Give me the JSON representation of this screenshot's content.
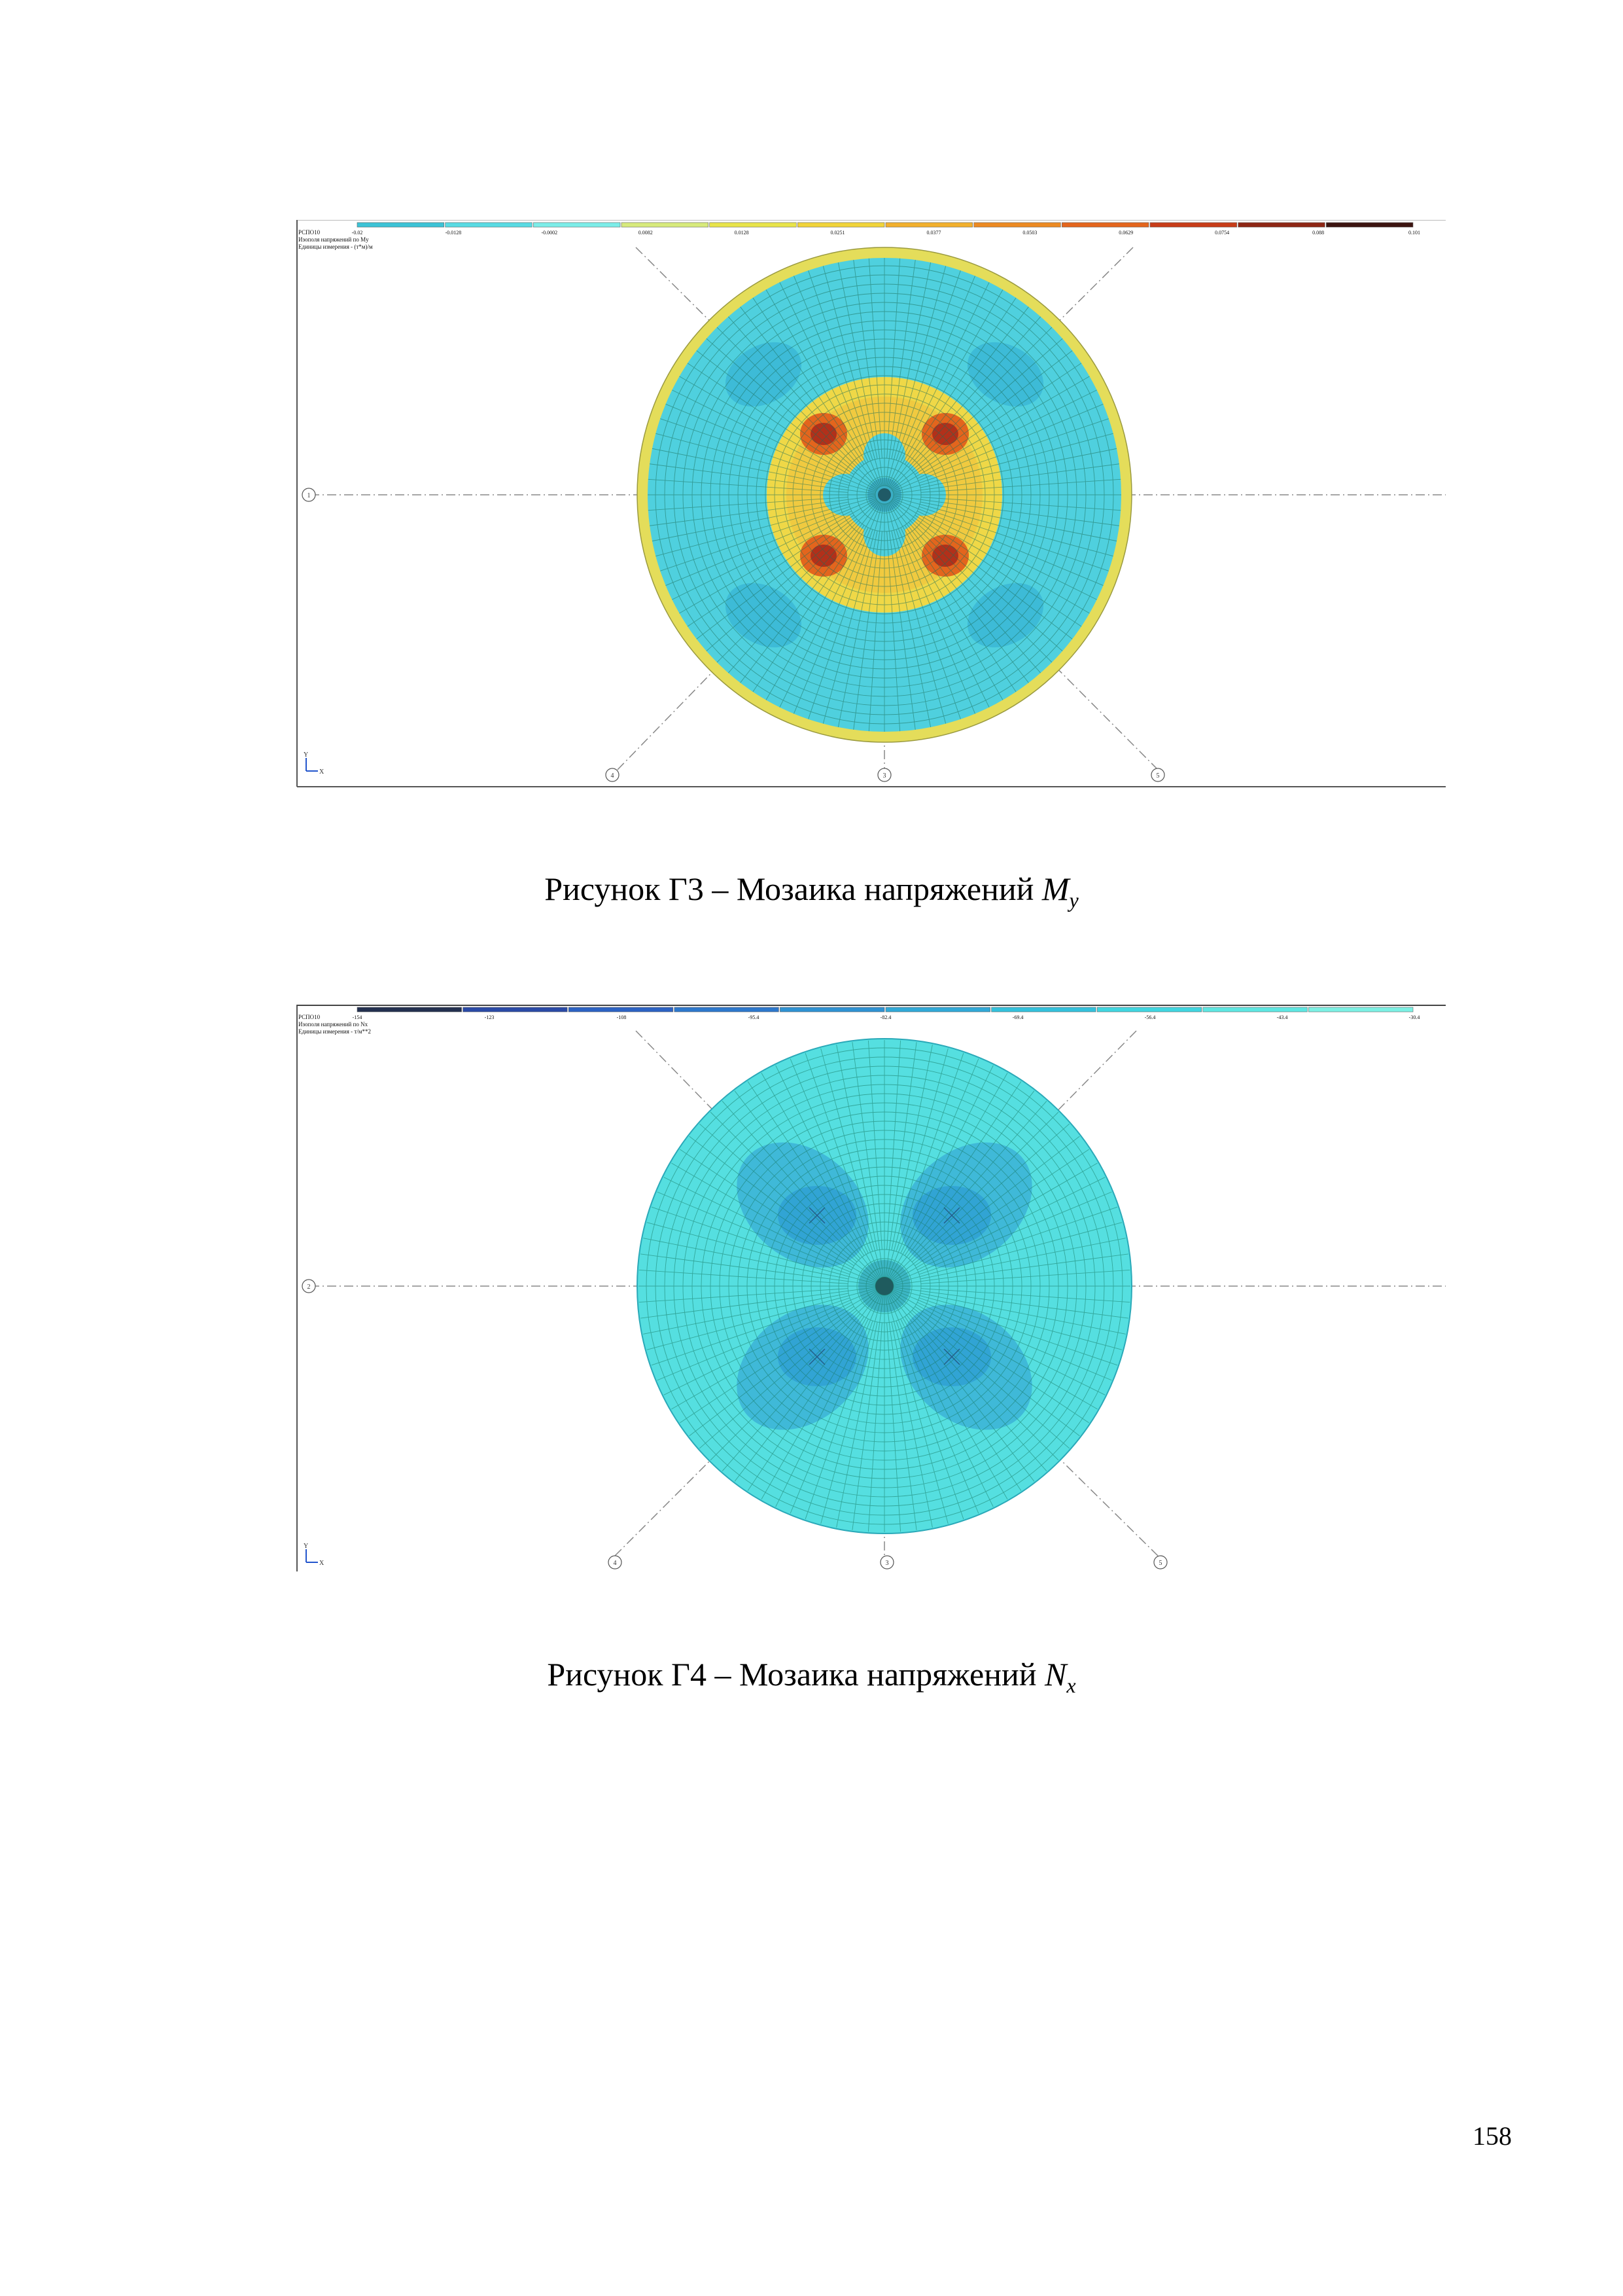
{
  "figures": [
    {
      "id": "fig1",
      "caption_prefix": "Рисунок Г3 – Мозаика напряжений ",
      "caption_var": "M",
      "caption_sub": "y",
      "header_lines": [
        "РСПО10",
        "Изополя напряжений по My",
        "Единицы измерения - (т*м)/м"
      ],
      "legend": {
        "colors": [
          "#3cc3d6",
          "#59dbe3",
          "#7cede8",
          "#d7ea7c",
          "#e8e44a",
          "#f1d43a",
          "#f2b02d",
          "#ec8a22",
          "#e4651d",
          "#c83c18",
          "#8e2614",
          "#3c1410"
        ],
        "values": [
          "-0.02",
          "-0.0128",
          "-0.0002",
          "0.0082",
          "0.0128",
          "0.0251",
          "0.0377",
          "0.0503",
          "0.0629",
          "0.0754",
          "0.088",
          "0.101"
        ]
      },
      "axis_markers": [
        "1",
        "4",
        "3",
        "5"
      ],
      "coord_axes": {
        "y": "Y",
        "x": "X"
      }
    },
    {
      "id": "fig2",
      "caption_prefix": "Рисунок Г4 – Мозаика напряжений ",
      "caption_var": "N",
      "caption_sub": "x",
      "header_lines": [
        "РСПО10",
        "Изополя напряжений по Nx",
        "Единицы измерения - т/м**2"
      ],
      "legend": {
        "colors": [
          "#23304f",
          "#2a4aa6",
          "#2c62c3",
          "#2d78cc",
          "#2f92d3",
          "#31a9d7",
          "#34c1dc",
          "#40d6e0",
          "#5ee7e2",
          "#7cf1e4"
        ],
        "values": [
          "-154",
          "-123",
          "-108",
          "-95.4",
          "-82.4",
          "-69.4",
          "-56.4",
          "-43.4",
          "-30.4"
        ]
      },
      "axis_markers": [
        "2",
        "4",
        "3",
        "5"
      ],
      "coord_axes": {
        "y": "Y",
        "x": "X"
      }
    }
  ],
  "page_number": "158"
}
